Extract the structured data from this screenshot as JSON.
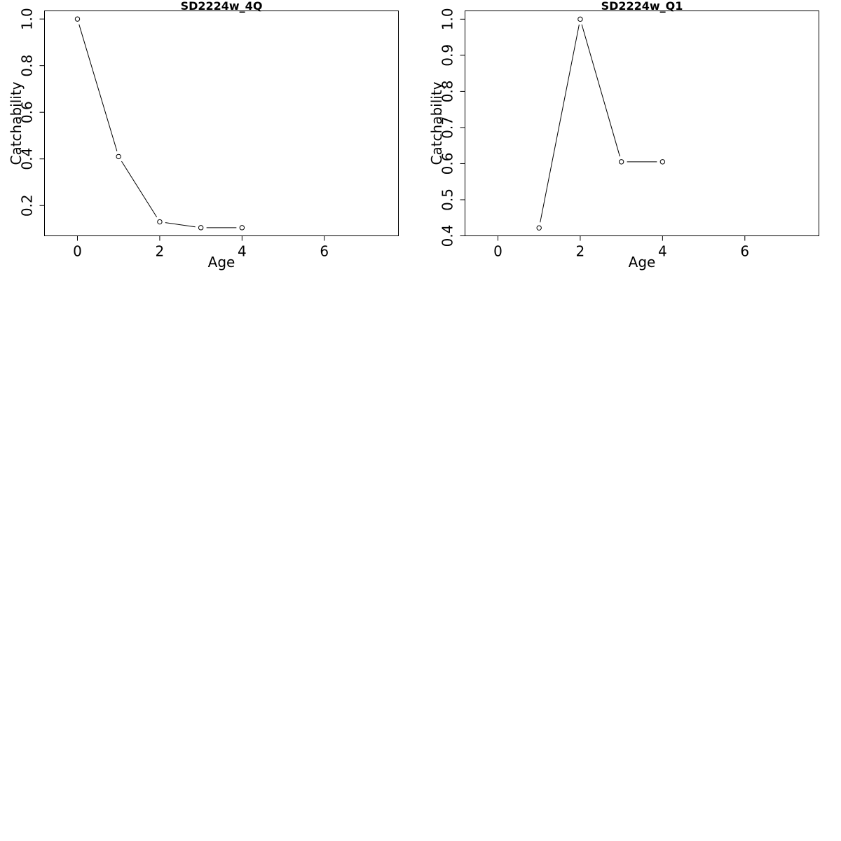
{
  "chart_data": [
    {
      "type": "line",
      "title": "SD2224w_4Q",
      "xlabel": "Age",
      "ylabel": "Catchability",
      "xlim": [
        -0.8,
        7.8
      ],
      "ylim": [
        0.07,
        1.035
      ],
      "xticks": [
        0,
        2,
        4,
        6
      ],
      "xtick_labels": [
        "0",
        "2",
        "4",
        "6"
      ],
      "yticks": [
        0.2,
        0.4,
        0.6,
        0.8,
        1.0
      ],
      "ytick_labels": [
        "0.2",
        "0.4",
        "0.6",
        "0.8",
        "1.0"
      ],
      "grid": false,
      "series": [
        {
          "x": [
            0,
            1,
            2,
            3,
            4
          ],
          "y": [
            1.0,
            0.41,
            0.13,
            0.105,
            0.105
          ]
        }
      ]
    },
    {
      "type": "line",
      "title": "SD2224w_Q1",
      "xlabel": "Age",
      "ylabel": "Catchability",
      "xlim": [
        -0.8,
        7.8
      ],
      "ylim": [
        0.4,
        1.023
      ],
      "xticks": [
        0,
        2,
        4,
        6
      ],
      "xtick_labels": [
        "0",
        "2",
        "4",
        "6"
      ],
      "yticks": [
        0.4,
        0.5,
        0.6,
        0.7,
        0.8,
        0.9,
        1.0
      ],
      "ytick_labels": [
        "0.4",
        "0.5",
        "0.6",
        "0.7",
        "0.8",
        "0.9",
        "1.0"
      ],
      "grid": false,
      "series": [
        {
          "x": [
            1,
            2,
            3,
            4
          ],
          "y": [
            0.422,
            1.0,
            0.605,
            0.605
          ]
        }
      ]
    }
  ]
}
